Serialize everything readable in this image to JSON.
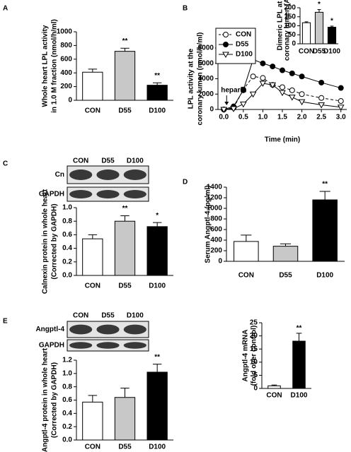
{
  "chart_data": [
    {
      "panel": "A",
      "type": "bar",
      "ylabel": [
        "Whole heart LPL activity",
        "in 1.0 M fraction (nmol/h/ml)"
      ],
      "categories": [
        "CON",
        "D55",
        "D100"
      ],
      "values": [
        410,
        715,
        220
      ],
      "errors": [
        45,
        45,
        35
      ],
      "sig_labels": [
        null,
        "**",
        "**"
      ],
      "colors": [
        "#ffffff",
        "#c8c8c8",
        "#000000"
      ],
      "ylim": [
        0,
        1000
      ],
      "yticks": [
        0,
        200,
        400,
        600,
        800,
        1000
      ]
    },
    {
      "panel": "B",
      "type": "line",
      "ylabel": [
        "LPL activity at the",
        "coronary lumen (nmol/h/ml)"
      ],
      "xlabel": "Time (min)",
      "annotation": "heparin",
      "x": [
        0,
        0.25,
        0.5,
        0.75,
        1.0,
        1.25,
        1.5,
        1.75,
        2.0,
        2.5,
        3.0
      ],
      "series": [
        {
          "name": "CON",
          "color": "#000000",
          "marker": "open-circle",
          "dashed": true,
          "values": [
            0,
            200,
            2600,
            4300,
            4100,
            3200,
            2900,
            2500,
            2000,
            1500,
            1100
          ]
        },
        {
          "name": "D55",
          "color": "#000000",
          "marker": "filled-circle",
          "dashed": false,
          "values": [
            0,
            400,
            2500,
            6500,
            6000,
            5600,
            5100,
            4700,
            4300,
            3500,
            2800
          ]
        },
        {
          "name": "D100",
          "color": "#000000",
          "marker": "open-triangle",
          "dashed": false,
          "values": [
            0,
            100,
            700,
            2000,
            3400,
            3200,
            2200,
            1600,
            1000,
            600,
            300
          ]
        }
      ],
      "xlim": [
        -0.15,
        3.15
      ],
      "xticks": [
        {
          "value": 0,
          "label": "0.0"
        },
        0.5,
        {
          "value": 1,
          "label": "1.0"
        },
        1.5,
        {
          "value": 2,
          "label": "2.0"
        },
        2.5,
        {
          "value": 3,
          "label": "3.0"
        }
      ],
      "ylim": [
        0,
        8000
      ],
      "yticks": [
        0,
        2000,
        4000,
        6000,
        8000
      ],
      "legend": "upper-left"
    },
    {
      "type": "bar",
      "ylabel": [
        "Dimeric LPL at",
        "coronary lumen (AU)"
      ],
      "categories": [
        "CON",
        "D55",
        "D100"
      ],
      "values": [
        117,
        175,
        92
      ],
      "errors": [
        5,
        15,
        6
      ],
      "sig_labels": [
        null,
        "*",
        "*"
      ],
      "colors": [
        "#ffffff",
        "#c8c8c8",
        "#000000"
      ],
      "ylim": [
        0,
        200
      ],
      "yticks": [
        0,
        50,
        100,
        150,
        200
      ]
    },
    {
      "panel": "C",
      "type": "bar",
      "ylabel": [
        "Calnexin protein in whole heart",
        "(Corrected by GAPDH)"
      ],
      "blot": {
        "lanes": [
          "CON",
          "D55",
          "D100"
        ],
        "rows": [
          "Cn",
          "GAPDH"
        ]
      },
      "categories": [
        "CON",
        "D55",
        "D100"
      ],
      "values": [
        0.54,
        0.8,
        0.72
      ],
      "errors": [
        0.06,
        0.08,
        0.06
      ],
      "sig_labels": [
        null,
        "**",
        "*"
      ],
      "colors": [
        "#ffffff",
        "#c8c8c8",
        "#000000"
      ],
      "ylim": [
        0,
        1.0
      ],
      "yticks": [
        {
          "value": 0,
          "label": "0.0"
        },
        0.2,
        0.4,
        0.6,
        0.8,
        {
          "value": 1,
          "label": "1.0"
        }
      ]
    },
    {
      "panel": "D",
      "type": "bar",
      "ylabel": [
        "Serum Angptl-4 (pg/ml)"
      ],
      "categories": [
        "CON",
        "D55",
        "D100"
      ],
      "values": [
        375,
        285,
        1160
      ],
      "errors": [
        120,
        45,
        160
      ],
      "sig_labels": [
        null,
        null,
        "**"
      ],
      "colors": [
        "#ffffff",
        "#c8c8c8",
        "#000000"
      ],
      "ylim": [
        0,
        1400
      ],
      "yticks": [
        0,
        200,
        400,
        600,
        800,
        1000,
        1200,
        1400
      ]
    },
    {
      "panel": "E",
      "type": "bar",
      "ylabel": [
        "Angptl-4 protein in whole heart",
        "(Corrected by GAPDH)"
      ],
      "blot": {
        "lanes": [
          "CON",
          "D55",
          "D100"
        ],
        "rows": [
          "Angptl-4",
          "GAPDH"
        ]
      },
      "categories": [
        "CON",
        "D55",
        "D100"
      ],
      "values": [
        0.57,
        0.64,
        1.02
      ],
      "errors": [
        0.1,
        0.14,
        0.12
      ],
      "sig_labels": [
        null,
        null,
        "**"
      ],
      "colors": [
        "#ffffff",
        "#c8c8c8",
        "#000000"
      ],
      "ylim": [
        0,
        1.2
      ],
      "yticks": [
        {
          "value": 0,
          "label": "0.0"
        },
        0.2,
        0.4,
        0.6,
        0.8,
        {
          "value": 1,
          "label": "1.0"
        },
        1.2
      ]
    },
    {
      "type": "bar",
      "ylabel": [
        "Angptl-4 mRNA",
        "(fold over control)"
      ],
      "categories": [
        "CON",
        "D100"
      ],
      "values": [
        1,
        18
      ],
      "errors": [
        0.3,
        3
      ],
      "sig_labels": [
        null,
        "**"
      ],
      "colors": [
        "#ffffff",
        "#000000"
      ],
      "ylim": [
        0,
        25
      ],
      "yticks": [
        0,
        5,
        10,
        15,
        20,
        25
      ]
    }
  ]
}
